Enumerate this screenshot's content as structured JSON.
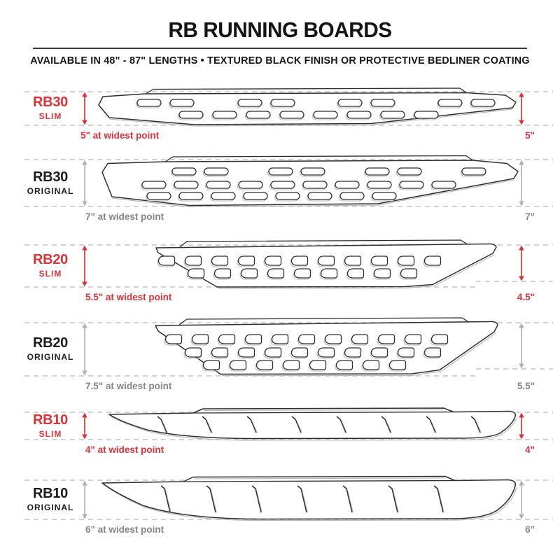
{
  "header": {
    "title": "RB RUNNING BOARDS",
    "subtitle": "AVAILABLE IN 48\" - 87\" LENGTHS   •   TEXTURED BLACK FINISH OR PROTECTIVE BEDLINER COATING"
  },
  "colors": {
    "red": "#d9343a",
    "black_text": "#1c1c1c",
    "gray_text": "#858585",
    "gray_arrow": "#b2b2b2",
    "dash_line": "#d2d2d2",
    "drawing_line": "#2e2e2e",
    "drawing_shadow": "#b9b9b9"
  },
  "boards": [
    {
      "model": "RB30",
      "variant": "SLIM",
      "accent": "red",
      "width_note": "5\" at widest point",
      "end_width": "5\"",
      "holes": "oval slots, 2 rows"
    },
    {
      "model": "RB30",
      "variant": "ORIGINAL",
      "accent": "gray",
      "width_note": "7\" at widest point",
      "end_width": "7\"",
      "holes": "oval slots, 3 rows"
    },
    {
      "model": "RB20",
      "variant": "SLIM",
      "accent": "red",
      "width_note": "5.5\" at widest point",
      "end_width": "4.5\"",
      "holes": "teardrop slots, 2 rows"
    },
    {
      "model": "RB20",
      "variant": "ORIGINAL",
      "accent": "gray",
      "width_note": "7.5\" at widest point",
      "end_width": "5.5\"",
      "holes": "teardrop slots, 3 rows"
    },
    {
      "model": "RB10",
      "variant": "SLIM",
      "accent": "red",
      "width_note": "4\" at widest point",
      "end_width": "4\"",
      "holes": "hash marks"
    },
    {
      "model": "RB10",
      "variant": "ORIGINAL",
      "accent": "gray",
      "width_note": "6\" at widest point",
      "end_width": "6\"",
      "holes": "hash marks"
    }
  ]
}
